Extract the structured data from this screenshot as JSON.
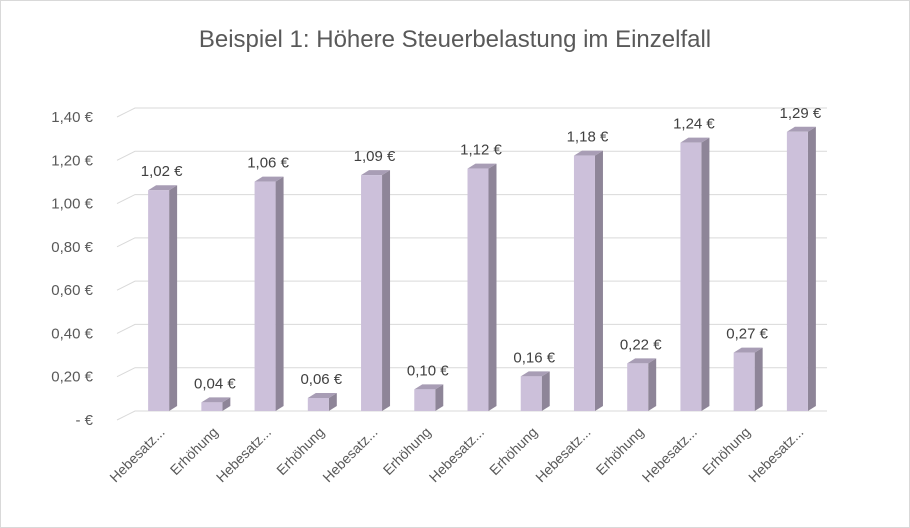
{
  "chart_data": {
    "type": "bar",
    "title": "Beispiel 1: Höhere Steuerbelastung im Einzelfall",
    "xlabel": "",
    "ylabel": "",
    "ylim": [
      0,
      1.4
    ],
    "grid": true,
    "legend": "none",
    "y_ticks": [
      "-  €",
      "0,20 €",
      "0,40 €",
      "0,60 €",
      "0,80 €",
      "1,00 €",
      "1,20 €",
      "1,40 €"
    ],
    "categories": [
      "Hebesatz...",
      "Erhöhung",
      "Hebesatz...",
      "Erhöhung",
      "Hebesatz...",
      "Erhöhung",
      "Hebesatz...",
      "Erhöhung",
      "Hebesatz...",
      "Erhöhung",
      "Hebesatz...",
      "Erhöhung",
      "Hebesatz..."
    ],
    "values": [
      1.02,
      0.04,
      1.06,
      0.06,
      1.09,
      0.1,
      1.12,
      0.16,
      1.18,
      0.22,
      1.24,
      0.27,
      1.29
    ],
    "data_labels": [
      "1,02 €",
      "0,04 €",
      "1,06 €",
      "0,06 €",
      "1,09 €",
      "0,10 €",
      "1,12 €",
      "0,16 €",
      "1,18 €",
      "0,22 €",
      "1,24 €",
      "0,27 €",
      "1,29 €"
    ],
    "colors": {
      "bar_front": "#ccc0da",
      "bar_side": "#8e8598",
      "bar_top": "#a89db5",
      "grid": "#d9d9d9",
      "text": "#595959"
    }
  }
}
